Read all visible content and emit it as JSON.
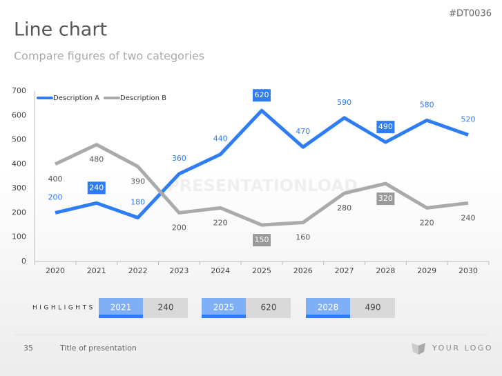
{
  "header": {
    "code": "#DT0036",
    "title": "Line chart",
    "subtitle": "Compare figures of two categories"
  },
  "watermark": "PRESENTATIONLOAD",
  "chart_data": {
    "type": "line",
    "categories": [
      "2020",
      "2021",
      "2022",
      "2023",
      "2024",
      "2025",
      "2026",
      "2027",
      "2028",
      "2029",
      "2030"
    ],
    "series": [
      {
        "name": "Description A",
        "color": "#2e7cf6",
        "values": [
          200,
          240,
          180,
          360,
          440,
          620,
          470,
          590,
          490,
          580,
          520
        ],
        "highlight": [
          "2021",
          "2025",
          "2028"
        ]
      },
      {
        "name": "Description B",
        "color": "#aaaaaa",
        "values": [
          400,
          480,
          390,
          200,
          220,
          150,
          160,
          280,
          320,
          220,
          240
        ],
        "highlight": [
          "2025",
          "2028"
        ]
      }
    ],
    "ylim": [
      0,
      700
    ],
    "yticks": [
      0,
      100,
      200,
      300,
      400,
      500,
      600,
      700
    ],
    "legend": "top-left",
    "grid": false
  },
  "highlights": {
    "label": "HIGHLIGHTS",
    "items": [
      {
        "year": "2021",
        "value": "240"
      },
      {
        "year": "2025",
        "value": "620"
      },
      {
        "year": "2028",
        "value": "490"
      }
    ]
  },
  "footer": {
    "page": "35",
    "title": "Title of presentation",
    "logo": "YOUR LOGO"
  }
}
